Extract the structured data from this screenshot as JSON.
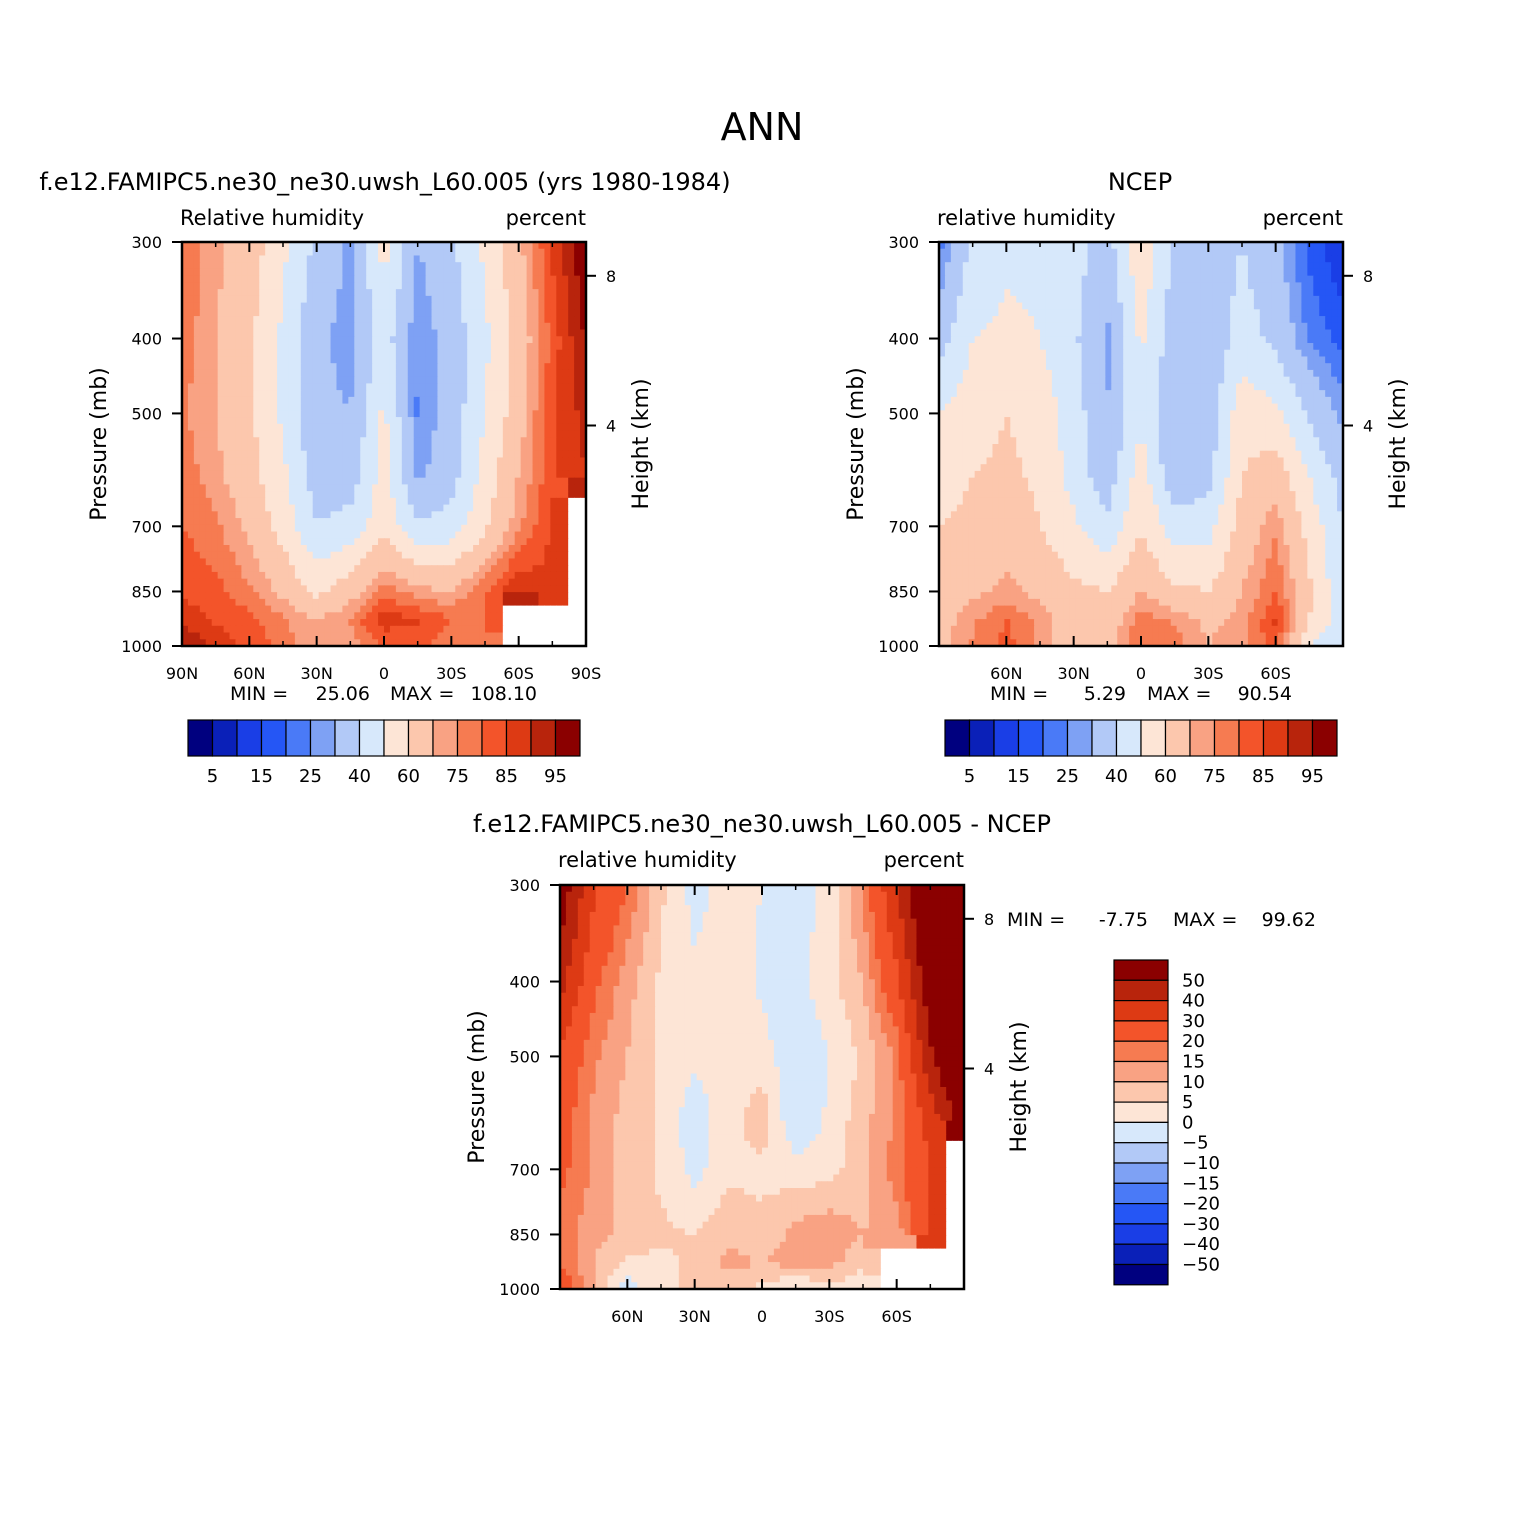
{
  "page_title": "ANN",
  "colors": {
    "abs_palette": [
      "#00007f",
      "#0a20b8",
      "#1a3ee6",
      "#2556f5",
      "#4a7af7",
      "#7ea1f4",
      "#b2c9f7",
      "#d7e8fb",
      "#fde5d6",
      "#fcc7ad",
      "#f9a283",
      "#f67b51",
      "#f3542a",
      "#dd3a14",
      "#b8240c",
      "#8b0000"
    ],
    "diff_palette": [
      "#8b0000",
      "#b8240c",
      "#dd3a14",
      "#f3542a",
      "#f67b51",
      "#f9a283",
      "#fcc7ad",
      "#fde5d6",
      "#d7e8fb",
      "#b2c9f7",
      "#7ea1f4",
      "#4a7af7",
      "#2556f5",
      "#1a3ee6",
      "#0a20b8",
      "#00007f"
    ],
    "missing": "#ffffff"
  },
  "chart_data": [
    {
      "type": "heatmap",
      "title": "f.e12.FAMIPC5.ne30_ne30.uwsh_L60.005 (yrs 1980-1984)",
      "left_label": "Relative humidity",
      "right_label": "percent",
      "ylabel": "Pressure (mb)",
      "ylabel_right": "Height (km)",
      "x_ticks": [
        "90N",
        "60N",
        "30N",
        "0",
        "30S",
        "60S",
        "90S"
      ],
      "y_ticks": [
        "300",
        "400",
        "500",
        "700",
        "850",
        "1000"
      ],
      "right_ticks": [
        "8",
        "4"
      ],
      "stats": {
        "min_label": "MIN =",
        "min_value": "25.06",
        "max_label": "MAX =",
        "max_value": "108.10"
      },
      "legend_labels": [
        "5",
        "15",
        "25",
        "40",
        "60",
        "75",
        "85",
        "95"
      ],
      "xlim": [
        90,
        -90
      ],
      "ylim": [
        300,
        1000
      ],
      "data": {
        "pressure": [
          300,
          400,
          500,
          600,
          700,
          850,
          925,
          1000
        ],
        "latitude": [
          90,
          75,
          60,
          45,
          30,
          15,
          0,
          -15,
          -30,
          -45,
          -60,
          -75,
          -90
        ],
        "values": [
          [
            80,
            72,
            66,
            52,
            38,
            28,
            54,
            30,
            38,
            52,
            68,
            86,
            100
          ],
          [
            78,
            70,
            62,
            48,
            32,
            27,
            45,
            25,
            34,
            48,
            64,
            82,
            96
          ],
          [
            76,
            70,
            62,
            48,
            32,
            30,
            52,
            24,
            34,
            50,
            66,
            84,
            92
          ],
          [
            78,
            72,
            64,
            52,
            35,
            34,
            55,
            28,
            36,
            54,
            70,
            84,
            90
          ],
          [
            80,
            76,
            68,
            56,
            40,
            44,
            56,
            42,
            44,
            58,
            74,
            86,
            null
          ],
          [
            84,
            82,
            76,
            68,
            58,
            66,
            78,
            72,
            70,
            80,
            90,
            86,
            null
          ],
          [
            88,
            84,
            82,
            76,
            70,
            76,
            88,
            86,
            80,
            80,
            null,
            null,
            null
          ],
          [
            96,
            88,
            84,
            78,
            70,
            72,
            80,
            82,
            76,
            76,
            null,
            null,
            null
          ]
        ]
      }
    },
    {
      "type": "heatmap",
      "title": "NCEP",
      "left_label": "relative humidity",
      "right_label": "percent",
      "ylabel": "Pressure (mb)",
      "ylabel_right": "Height (km)",
      "x_ticks": [
        "60N",
        "30N",
        "0",
        "30S",
        "60S"
      ],
      "y_ticks": [
        "300",
        "400",
        "500",
        "700",
        "850",
        "1000"
      ],
      "right_ticks": [
        "8",
        "4"
      ],
      "stats": {
        "min_label": "MIN =",
        "min_value": "5.29",
        "max_label": "MAX =",
        "max_value": "90.54"
      },
      "legend_labels": [
        "5",
        "15",
        "25",
        "40",
        "60",
        "75",
        "85",
        "95"
      ],
      "xlim": [
        90,
        -90
      ],
      "ylim": [
        300,
        1000
      ],
      "data": {
        "pressure": [
          300,
          400,
          500,
          600,
          700,
          850,
          925,
          1000
        ],
        "latitude": [
          90,
          75,
          60,
          45,
          30,
          15,
          0,
          -15,
          -30,
          -45,
          -60,
          -75,
          -90
        ],
        "values": [
          [
            22,
            42,
            48,
            48,
            44,
            36,
            58,
            38,
            36,
            40,
            32,
            18,
            10
          ],
          [
            36,
            50,
            52,
            50,
            42,
            28,
            52,
            34,
            32,
            44,
            38,
            24,
            18
          ],
          [
            50,
            56,
            60,
            56,
            45,
            30,
            48,
            30,
            34,
            56,
            52,
            38,
            28
          ],
          [
            56,
            60,
            62,
            58,
            46,
            34,
            55,
            32,
            36,
            60,
            66,
            50,
            36
          ],
          [
            60,
            62,
            66,
            60,
            52,
            42,
            60,
            44,
            46,
            64,
            74,
            56,
            40
          ],
          [
            64,
            68,
            72,
            68,
            62,
            60,
            70,
            62,
            60,
            70,
            80,
            62,
            42
          ],
          [
            66,
            74,
            80,
            74,
            64,
            64,
            78,
            74,
            68,
            72,
            86,
            60,
            44
          ],
          [
            68,
            76,
            82,
            74,
            64,
            66,
            80,
            78,
            70,
            74,
            82,
            50,
            40
          ]
        ]
      }
    },
    {
      "type": "heatmap",
      "title": "f.e12.FAMIPC5.ne30_ne30.uwsh_L60.005 - NCEP",
      "left_label": "relative humidity",
      "right_label": "percent",
      "ylabel": "Pressure (mb)",
      "ylabel_right": "Height (km)",
      "x_ticks": [
        "60N",
        "30N",
        "0",
        "30S",
        "60S"
      ],
      "y_ticks": [
        "300",
        "400",
        "500",
        "700",
        "850",
        "1000"
      ],
      "right_ticks": [
        "8",
        "4"
      ],
      "stats": {
        "min_label": "MIN =",
        "min_value": "-7.75",
        "max_label": "MAX =",
        "max_value": "99.62"
      },
      "legend_labels": [
        "50",
        "40",
        "30",
        "20",
        "15",
        "10",
        "5",
        "0",
        "-5",
        "-10",
        "-15",
        "-20",
        "-30",
        "-40",
        "-50"
      ],
      "xlim": [
        90,
        -90
      ],
      "ylim": [
        300,
        1000
      ],
      "data": {
        "pressure": [
          300,
          400,
          500,
          600,
          700,
          850,
          925,
          1000
        ],
        "latitude": [
          90,
          75,
          60,
          45,
          30,
          15,
          0,
          -15,
          -30,
          -45,
          -60,
          -75,
          -90
        ],
        "values": [
          [
            58,
            32,
            20,
            6,
            -2,
            2,
            0,
            -3,
            2,
            16,
            40,
            68,
            90
          ],
          [
            44,
            22,
            12,
            4,
            1,
            3,
            -1,
            -2,
            3,
            10,
            28,
            58,
            80
          ],
          [
            28,
            16,
            10,
            4,
            1,
            2,
            2,
            -4,
            0,
            6,
            16,
            48,
            70
          ],
          [
            24,
            14,
            8,
            4,
            -3,
            3,
            8,
            -5,
            1,
            8,
            16,
            34,
            56
          ],
          [
            22,
            14,
            8,
            4,
            -2,
            4,
            4,
            2,
            3,
            8,
            18,
            30,
            null
          ],
          [
            18,
            12,
            8,
            6,
            5,
            8,
            6,
            12,
            14,
            10,
            12,
            30,
            null
          ],
          [
            20,
            10,
            4,
            4,
            6,
            12,
            10,
            12,
            12,
            6,
            null,
            null,
            null
          ],
          [
            26,
            10,
            -3,
            4,
            6,
            6,
            4,
            -1,
            3,
            2,
            null,
            null,
            null
          ]
        ]
      }
    }
  ]
}
